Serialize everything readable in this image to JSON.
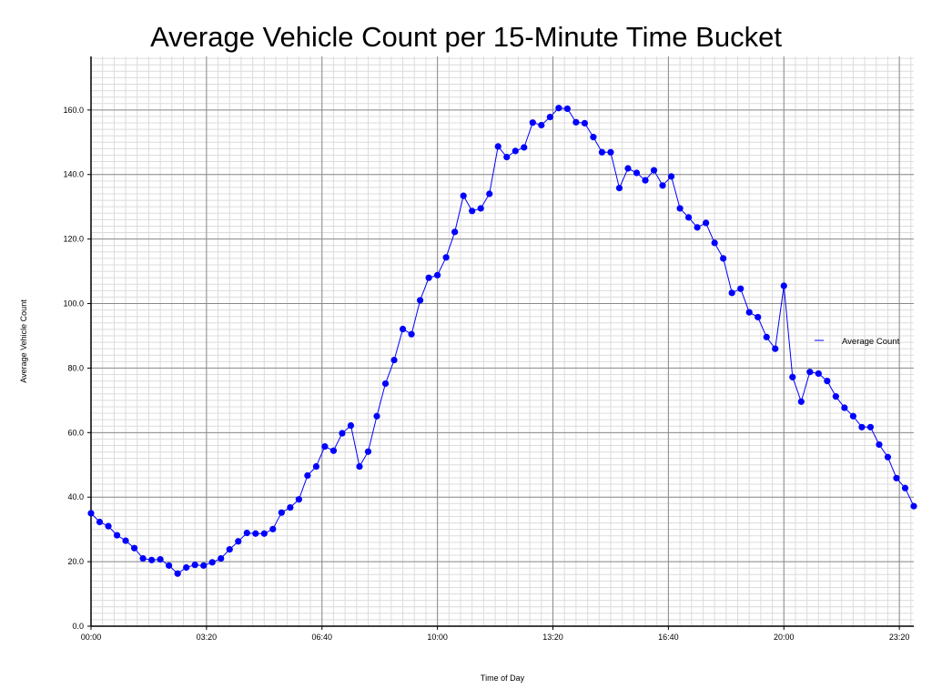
{
  "chart_data": {
    "type": "line",
    "title": "Average Vehicle Count per 15-Minute Time Bucket",
    "xlabel": "Time of Day",
    "ylabel": "Average Vehicle Count",
    "legend": {
      "entries": [
        "Average Count"
      ],
      "placement": "right"
    },
    "grid": true,
    "color": "#0000ff",
    "xlim_minutes": [
      0,
      1425
    ],
    "ylim": [
      0,
      176.6
    ],
    "x_tick_labels": [
      "00:00",
      "03:20",
      "06:40",
      "10:00",
      "13:20",
      "16:40",
      "20:00",
      "23:20"
    ],
    "y_tick_labels": [
      "0.0",
      "20.0",
      "40.0",
      "60.0",
      "80.0",
      "100.0",
      "120.0",
      "140.0",
      "160.0"
    ],
    "x_interval": "15 minutes, 00:00 to 23:45",
    "series": [
      {
        "name": "Average Count",
        "values": [
          35.0,
          32.3,
          31.0,
          28.2,
          26.5,
          24.2,
          21.0,
          20.5,
          20.7,
          18.8,
          16.3,
          18.2,
          19.0,
          18.8,
          19.8,
          21.0,
          23.8,
          26.3,
          28.9,
          28.7,
          28.7,
          30.1,
          35.2,
          36.8,
          39.3,
          46.7,
          49.5,
          55.7,
          54.4,
          59.8,
          62.2,
          49.5,
          54.1,
          65.1,
          75.2,
          82.5,
          92.1,
          90.5,
          101.0,
          108.0,
          108.8,
          114.3,
          122.2,
          133.4,
          128.7,
          129.5,
          134.0,
          148.7,
          145.4,
          147.3,
          148.4,
          156.1,
          155.3,
          157.8,
          160.6,
          160.4,
          156.2,
          155.9,
          151.6,
          146.9,
          146.9,
          135.8,
          141.9,
          140.5,
          138.2,
          141.3,
          136.6,
          139.4,
          129.5,
          126.7,
          123.6,
          125.0,
          118.8,
          114.0,
          103.3,
          104.6,
          97.3,
          95.8,
          89.6,
          86.0,
          105.5,
          77.2,
          69.6,
          78.8,
          78.3,
          76.0,
          71.2,
          67.7,
          65.1,
          61.7,
          61.7,
          56.3,
          52.4,
          45.9,
          42.8,
          37.2
        ]
      }
    ]
  }
}
